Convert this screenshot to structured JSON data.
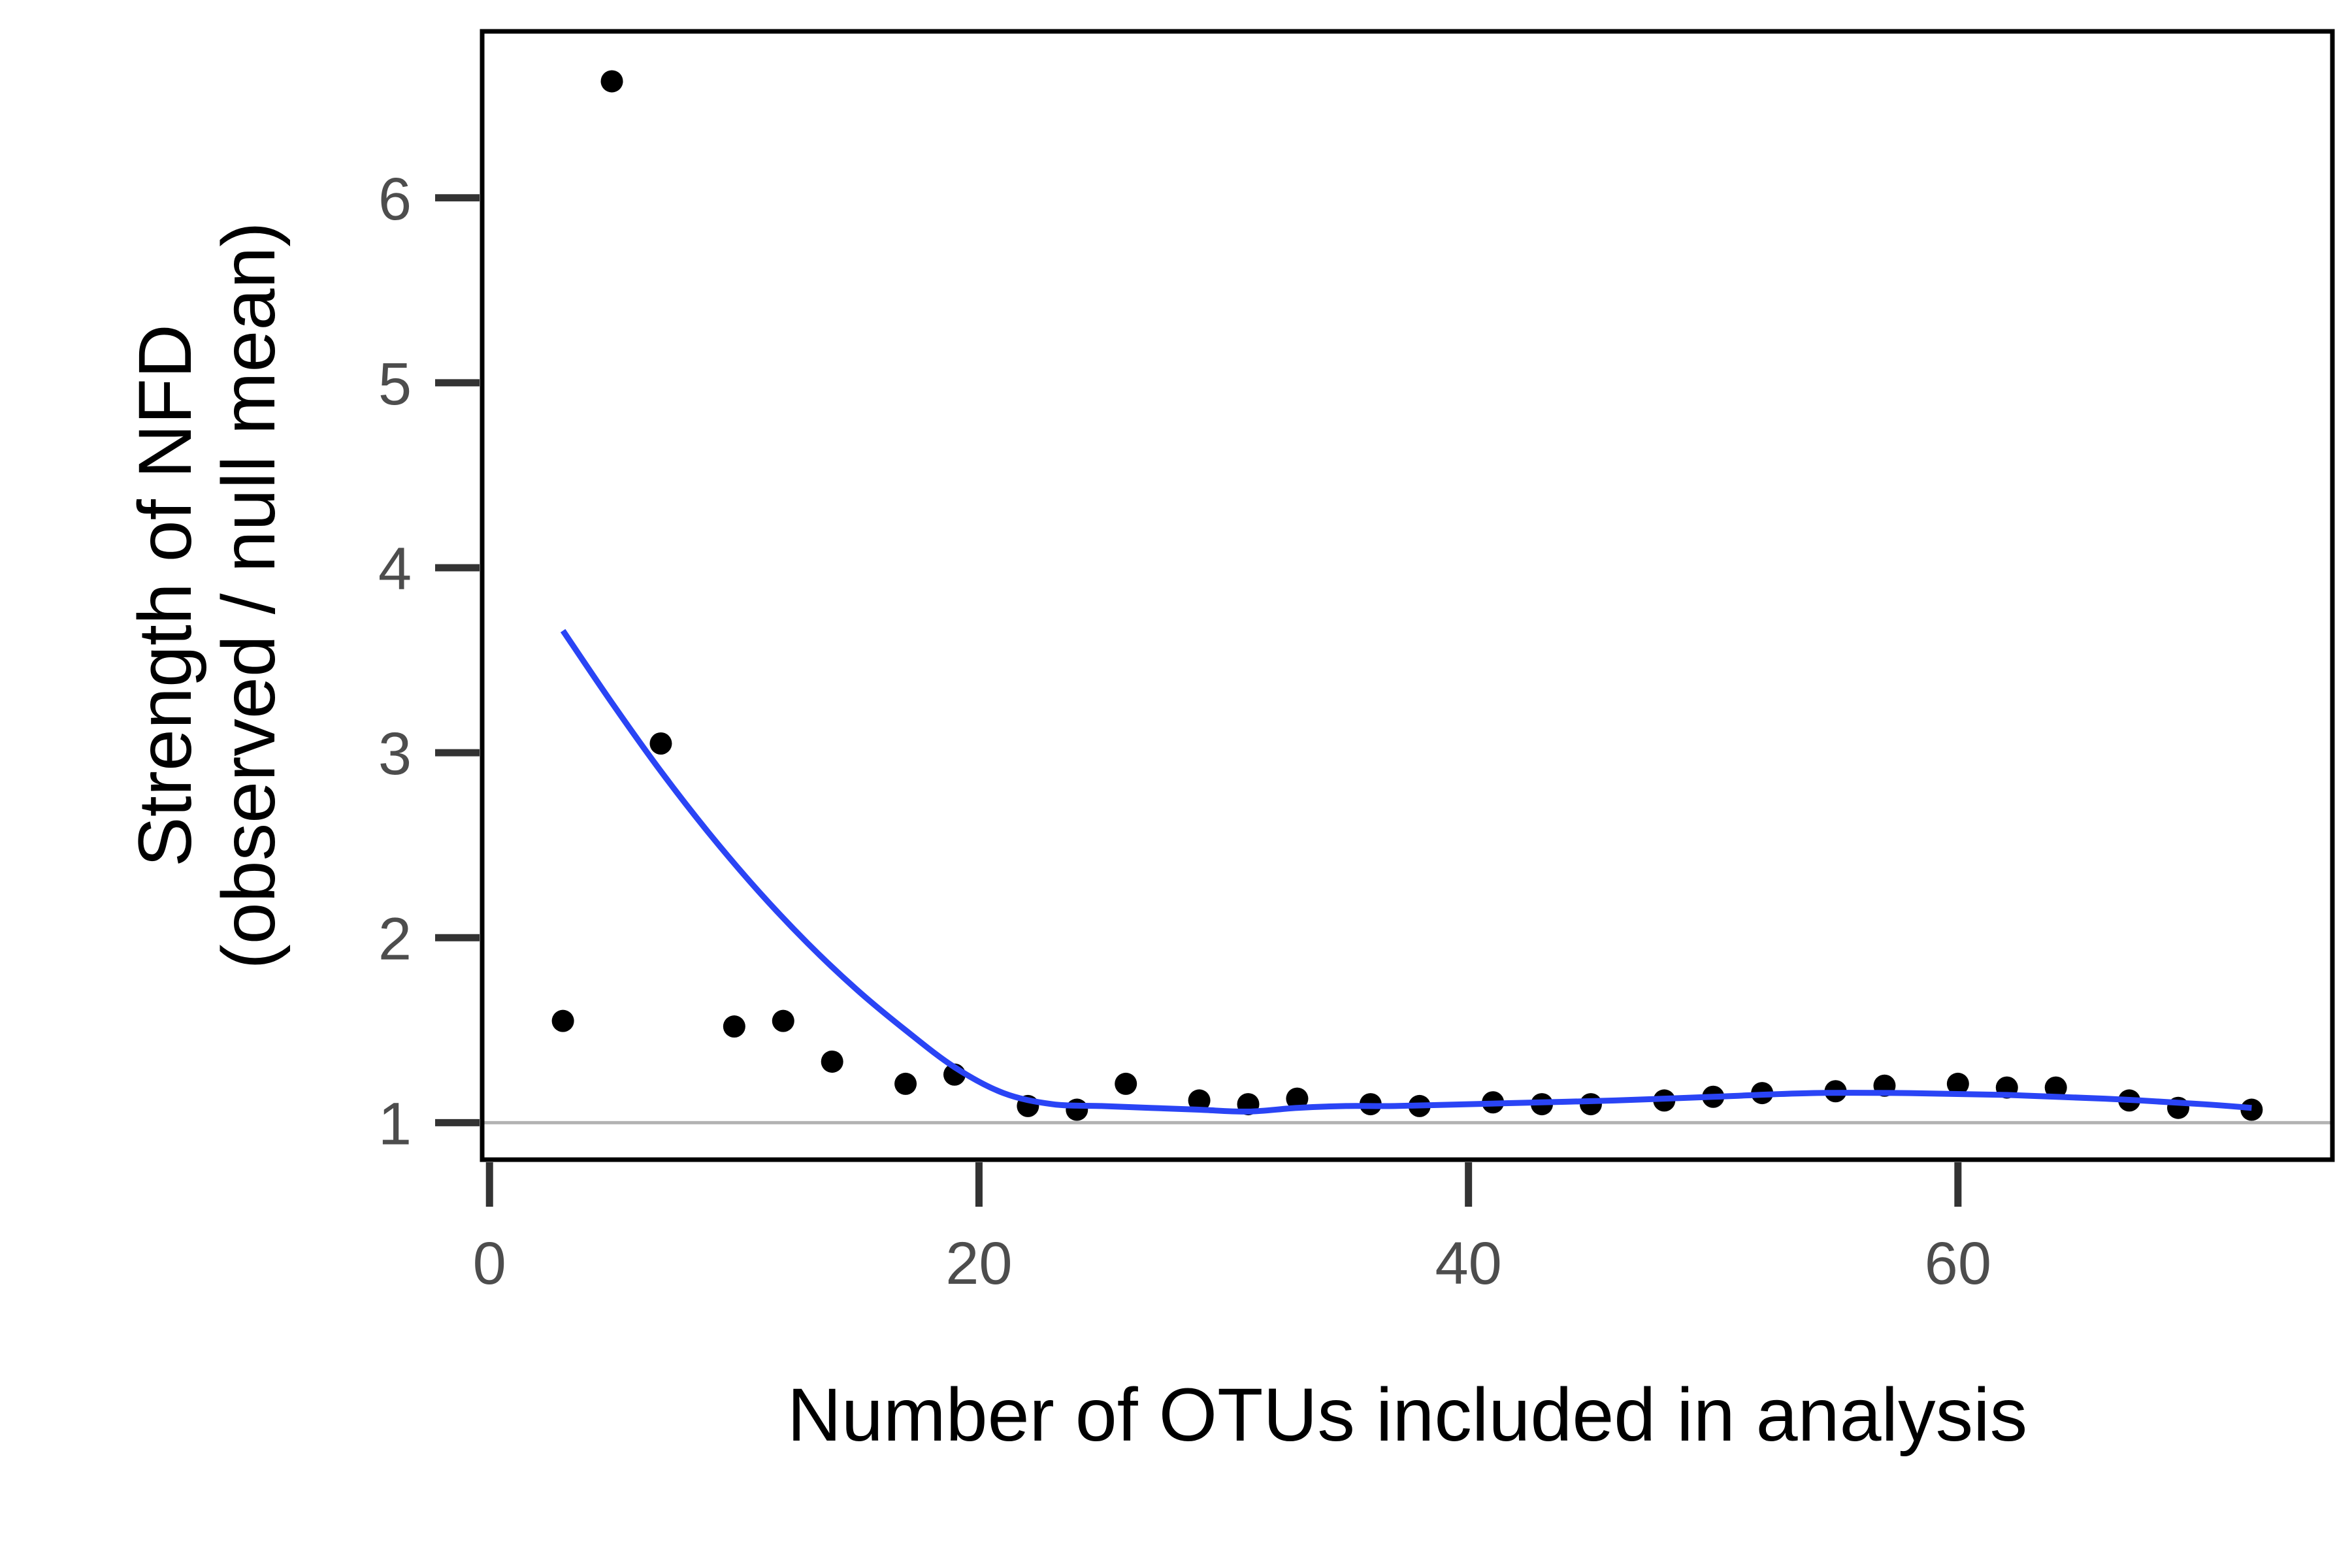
{
  "chart_data": {
    "type": "scatter",
    "title": "",
    "xlabel": "Number of OTUs included in analysis",
    "ylabel_lines": [
      "Strength of NFD",
      "(observed / null mean)"
    ],
    "xlim": [
      -0.3,
      75.3
    ],
    "ylim": [
      0.8,
      6.9
    ],
    "x_ticks": [
      0,
      20,
      40,
      60
    ],
    "x_tick_labels": [
      "0",
      "20",
      "40",
      "60"
    ],
    "y_ticks": [
      1,
      2,
      3,
      4,
      5,
      6
    ],
    "y_tick_labels": [
      "1",
      "2",
      "3",
      "4",
      "5",
      "6"
    ],
    "reference_line": {
      "y": 1,
      "color": "#b3b3b3"
    },
    "grid": false,
    "series": [
      {
        "kind": "points",
        "color": "#000000",
        "x": [
          3,
          5,
          7,
          10,
          12,
          14,
          17,
          19,
          22,
          24,
          26,
          29,
          31,
          33,
          36,
          38,
          41,
          43,
          45,
          48,
          50,
          52,
          55,
          57,
          60,
          62,
          64,
          67,
          69,
          72
        ],
        "y": [
          1.55,
          6.63,
          3.05,
          1.52,
          1.55,
          1.33,
          1.21,
          1.26,
          1.09,
          1.07,
          1.21,
          1.12,
          1.1,
          1.13,
          1.1,
          1.09,
          1.11,
          1.1,
          1.1,
          1.12,
          1.14,
          1.16,
          1.17,
          1.2,
          1.21,
          1.19,
          1.19,
          1.12,
          1.08,
          1.07
        ]
      },
      {
        "kind": "smooth",
        "color": "#2a44f5",
        "x": [
          3,
          5,
          7,
          9,
          11,
          13,
          15,
          17,
          19,
          21,
          23,
          25,
          27,
          29,
          31,
          33,
          35,
          37,
          40,
          43,
          46,
          50,
          54,
          58,
          62,
          66,
          70,
          72
        ],
        "y": [
          3.66,
          3.27,
          2.9,
          2.56,
          2.25,
          1.97,
          1.72,
          1.5,
          1.3,
          1.16,
          1.1,
          1.09,
          1.08,
          1.07,
          1.06,
          1.08,
          1.09,
          1.09,
          1.1,
          1.11,
          1.12,
          1.14,
          1.16,
          1.16,
          1.15,
          1.13,
          1.1,
          1.08
        ]
      }
    ]
  }
}
